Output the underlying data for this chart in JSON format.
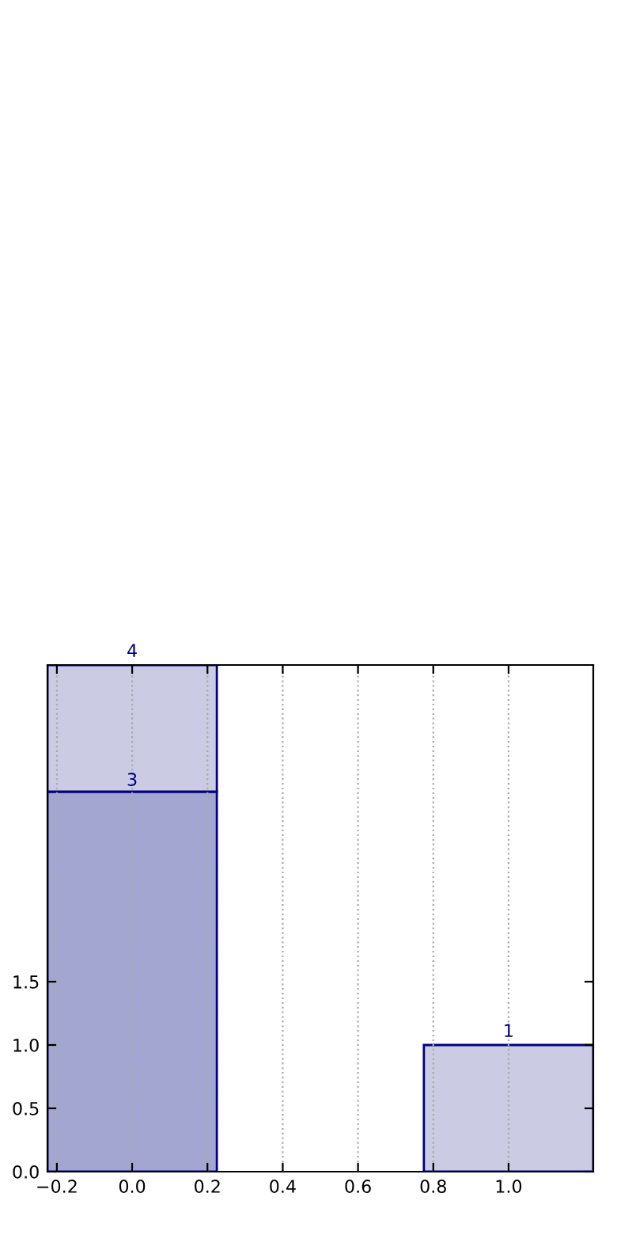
{
  "chart_data": {
    "type": "bar",
    "x": [
      0,
      1
    ],
    "stacked": true,
    "series": [
      {
        "color": "#a3a6d1",
        "values": [
          3,
          null
        ],
        "value_labels": [
          "3",
          null
        ]
      },
      {
        "color": "#cbcbe3",
        "values": [
          1,
          1
        ]
      }
    ],
    "totals": [
      "4",
      "1"
    ],
    "xlim": [
      -0.225,
      1.225
    ],
    "xticks": [
      {
        "value": -0.2,
        "label": "−0.2"
      },
      {
        "value": 0.0,
        "label": "0.0"
      },
      {
        "value": 0.2,
        "label": "0.2"
      },
      {
        "value": 0.4,
        "label": "0.4"
      },
      {
        "value": 0.6,
        "label": "0.6"
      },
      {
        "value": 0.8,
        "label": "0.8"
      },
      {
        "value": 1.0,
        "label": "1.0"
      }
    ],
    "ylim": [
      0,
      4
    ],
    "yticks": [
      {
        "value": 0,
        "label": "0.0"
      },
      {
        "value": 0.5,
        "label": "0.5"
      },
      {
        "value": 1.0,
        "label": "1.0"
      },
      {
        "value": 1.5,
        "label": "1.5"
      }
    ],
    "grid": "x",
    "line_style": "dotted"
  }
}
